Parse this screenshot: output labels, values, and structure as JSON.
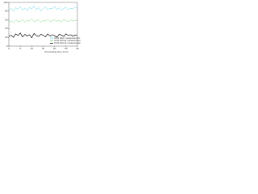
{
  "chart_data": {
    "type": "line",
    "x_label": "Processing time (min)",
    "x": [
      0,
      1,
      2,
      3,
      4,
      5,
      6,
      7,
      8,
      9,
      10,
      11,
      12,
      13,
      14,
      15,
      16,
      17,
      18,
      19,
      20,
      21,
      22,
      23,
      24,
      25,
      26,
      27,
      28,
      29,
      30
    ],
    "xlim": [
      0,
      30
    ],
    "xticks": [
      0,
      5,
      10,
      15,
      20,
      25,
      30
    ],
    "ylim": [
      0,
      100
    ],
    "yticks": [
      0,
      20,
      40,
      60,
      80,
      100
    ],
    "legend": "lower right",
    "series": [
      {
        "name": "CO2 after measurement",
        "color": "#5fd3e8",
        "values": [
          82,
          86,
          80,
          88,
          84,
          90,
          83,
          87,
          81,
          89,
          85,
          92,
          84,
          88,
          80,
          86,
          90,
          83,
          87,
          85,
          91,
          84,
          88,
          82,
          86,
          89,
          83,
          87,
          85,
          90,
          86
        ]
      },
      {
        "name": "CO2 during measurement",
        "color": "#7fd67f",
        "values": [
          55,
          58,
          54,
          60,
          57,
          56,
          61,
          55,
          59,
          57,
          62,
          56,
          58,
          60,
          55,
          59,
          57,
          61,
          56,
          58,
          60,
          57,
          59,
          55,
          61,
          58,
          56,
          60,
          57,
          59,
          58
        ]
      },
      {
        "name": "CO2 before measurement",
        "color": "#111111",
        "values": [
          22,
          25,
          20,
          28,
          24,
          30,
          21,
          27,
          23,
          26,
          19,
          29,
          24,
          22,
          27,
          25,
          21,
          28,
          23,
          26,
          24,
          20,
          27,
          25,
          22,
          28,
          24,
          26,
          23,
          25,
          24
        ]
      }
    ]
  }
}
